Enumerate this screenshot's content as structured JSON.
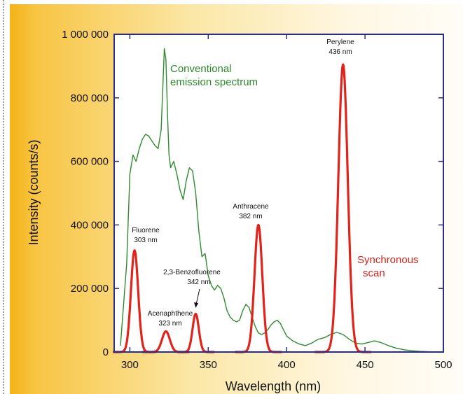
{
  "chart_data": {
    "type": "line",
    "xlabel": "Wavelength (nm)",
    "ylabel": "Intensity (counts/s)",
    "xlim": [
      290,
      500
    ],
    "ylim": [
      0,
      1000000
    ],
    "x_ticks": [
      300,
      350,
      400,
      450,
      500
    ],
    "x_tick_labels": [
      "300",
      "350",
      "400",
      "450",
      "500"
    ],
    "y_ticks": [
      0,
      200000,
      400000,
      600000,
      800000,
      1000000
    ],
    "y_tick_labels": [
      "0",
      "200 000",
      "400 000",
      "600 000",
      "800 000",
      "1 000 000"
    ],
    "colors": {
      "conventional": "#2e8b2e",
      "synchronous": "#e0231b"
    },
    "series": [
      {
        "name": "Conventional emission spectrum",
        "label_lines": [
          "Conventional",
          "emission spectrum"
        ],
        "color": "#2e8b2e",
        "x": [
          294,
          298,
          300,
          302,
          304,
          306,
          308,
          310,
          312,
          314,
          316,
          318,
          320,
          321,
          322,
          323,
          324,
          325,
          326,
          328,
          330,
          332,
          334,
          336,
          338,
          340,
          342,
          344,
          346,
          348,
          350,
          352,
          354,
          356,
          358,
          360,
          362,
          364,
          366,
          368,
          370,
          372,
          374,
          376,
          378,
          380,
          382,
          384,
          386,
          388,
          390,
          392,
          394,
          396,
          398,
          400,
          404,
          408,
          412,
          416,
          420,
          424,
          428,
          432,
          436,
          440,
          444,
          448,
          452,
          456,
          460,
          465,
          470,
          475,
          480,
          485,
          490
        ],
        "values": [
          20000,
          280000,
          560000,
          620000,
          600000,
          640000,
          670000,
          685000,
          680000,
          665000,
          650000,
          640000,
          700000,
          830000,
          955000,
          920000,
          750000,
          620000,
          580000,
          600000,
          560000,
          510000,
          480000,
          540000,
          580000,
          570000,
          500000,
          380000,
          300000,
          310000,
          240000,
          210000,
          195000,
          210000,
          200000,
          170000,
          130000,
          110000,
          100000,
          95000,
          100000,
          130000,
          150000,
          140000,
          110000,
          80000,
          60000,
          55000,
          60000,
          70000,
          85000,
          95000,
          100000,
          90000,
          70000,
          50000,
          35000,
          25000,
          20000,
          28000,
          40000,
          45000,
          55000,
          62000,
          55000,
          40000,
          28000,
          25000,
          30000,
          35000,
          30000,
          20000,
          12000,
          7000,
          4000,
          2000,
          1000
        ]
      },
      {
        "name": "Synchronous scan",
        "label_lines": [
          "Synchronous",
          "scan"
        ],
        "color": "#e0231b",
        "peaks": [
          {
            "center": 303,
            "height": 320000,
            "width": 4.6,
            "label_lines": [
              "Fluorene",
              "303 nm"
            ]
          },
          {
            "center": 323,
            "height": 65000,
            "width": 5.0,
            "label_lines": [
              "Acenaphthene",
              "323 nm"
            ]
          },
          {
            "center": 342,
            "height": 120000,
            "width": 4.0,
            "label_lines": [
              "2,3-Benzofluorene",
              "342 nm"
            ]
          },
          {
            "center": 382,
            "height": 400000,
            "width": 5.0,
            "label_lines": [
              "Anthracene",
              "382 nm"
            ]
          },
          {
            "center": 436,
            "height": 905000,
            "width": 6.0,
            "label_lines": [
              "Perylene",
              "436 nm"
            ]
          }
        ]
      }
    ]
  }
}
